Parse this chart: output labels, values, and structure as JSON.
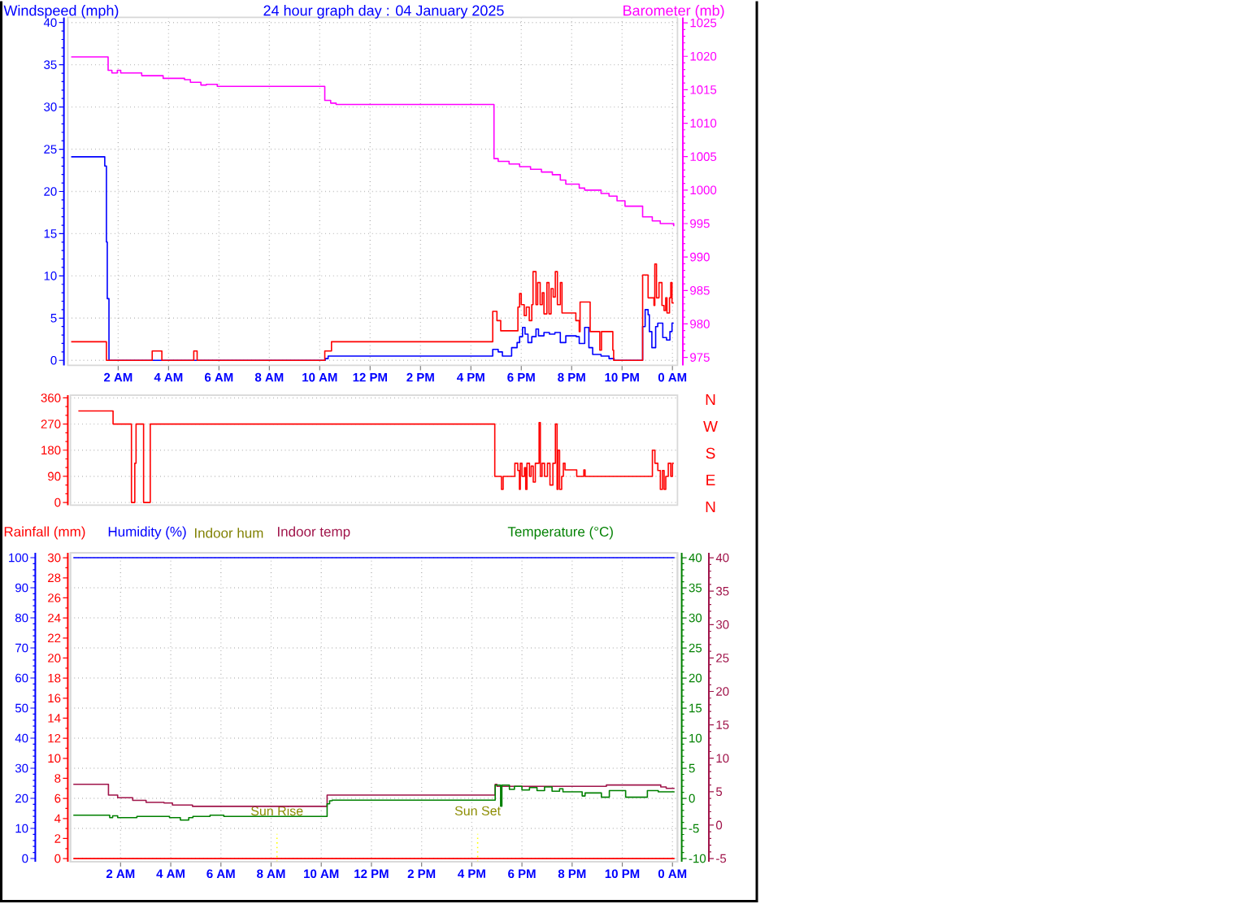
{
  "chart_data": [
    {
      "type": "step",
      "title": "24 hour graph day : 04 January 2025",
      "ylabel": "Windspeed (mph)",
      "y2label": "Barometer (mb)",
      "xlim": [
        "2025-01-04T00:00",
        "2025-01-05T00:12"
      ],
      "xticks": [
        {
          "value": "2025-01-04T02:00",
          "label": "2 AM"
        },
        {
          "value": "2025-01-04T04:00",
          "label": "4 AM"
        },
        {
          "value": "2025-01-04T06:00",
          "label": "6 AM"
        },
        {
          "value": "2025-01-04T08:00",
          "label": "8 AM"
        },
        {
          "value": "2025-01-04T10:00",
          "label": "10 AM"
        },
        {
          "value": "2025-01-04T12:00",
          "label": "12 PM"
        },
        {
          "value": "2025-01-04T14:00",
          "label": "2 PM"
        },
        {
          "value": "2025-01-04T16:00",
          "label": "4 PM"
        },
        {
          "value": "2025-01-04T18:00",
          "label": "6 PM"
        },
        {
          "value": "2025-01-04T20:00",
          "label": "8 PM"
        },
        {
          "value": "2025-01-04T22:00",
          "label": "10 PM"
        },
        {
          "value": "2025-01-05T00:00",
          "label": "0 AM"
        }
      ],
      "ylim": [
        -0.6,
        40.6
      ],
      "yticks": [
        0,
        5,
        10,
        15,
        20,
        25,
        30,
        35,
        40
      ],
      "y2lim": [
        973.8,
        1025.8
      ],
      "y2ticks": [
        975,
        980,
        985,
        990,
        995,
        1000,
        1005,
        1010,
        1015,
        1020,
        1025
      ],
      "grid": true,
      "series": [
        {
          "color": "#0000ff",
          "x": [
            "2025-01-04T00:08",
            "2025-01-04T01:28",
            "2025-01-04T01:32",
            "2025-01-04T01:34",
            "2025-01-04T01:38",
            "2025-01-04T10:13",
            "2025-01-04T10:20",
            "2025-01-04T16:52",
            "2025-01-04T17:05",
            "2025-01-04T17:15",
            "2025-01-04T17:37",
            "2025-01-04T17:50",
            "2025-01-04T17:56",
            "2025-01-04T18:03",
            "2025-01-04T18:09",
            "2025-01-04T18:16",
            "2025-01-04T18:25",
            "2025-01-04T18:35",
            "2025-01-04T18:41",
            "2025-01-04T18:54",
            "2025-01-04T19:07",
            "2025-01-04T19:20",
            "2025-01-04T19:33",
            "2025-01-04T19:46",
            "2025-01-04T20:11",
            "2025-01-04T20:18",
            "2025-01-04T20:31",
            "2025-01-04T20:41",
            "2025-01-04T20:50",
            "2025-01-04T21:10",
            "2025-01-04T21:29",
            "2025-01-04T21:41",
            "2025-01-04T22:49",
            "2025-01-04T22:55",
            "2025-01-04T23:02",
            "2025-01-04T23:05",
            "2025-01-04T23:11",
            "2025-01-04T23:20",
            "2025-01-04T23:25",
            "2025-01-04T23:37",
            "2025-01-04T23:46",
            "2025-01-04T23:54",
            "2025-01-04T23:59",
            "2025-01-05T00:03"
          ],
          "values": [
            24.1,
            23.0,
            14.0,
            7.3,
            0,
            0.2,
            0.5,
            1.3,
            1.0,
            0.5,
            1.5,
            2.1,
            2.8,
            3.9,
            3.1,
            2.1,
            2.8,
            3.7,
            2.9,
            3.3,
            3.1,
            3.3,
            2.1,
            2.9,
            2.8,
            2.0,
            3.9,
            1.5,
            0.7,
            0.5,
            0.2,
            0,
            4.0,
            6.0,
            5.4,
            3.4,
            1.5,
            4.0,
            4.4,
            2.7,
            2.4,
            3.4,
            4.4,
            4.4
          ]
        },
        {
          "color": "#ff0000",
          "x": [
            "2025-01-04T00:08",
            "2025-01-04T01:32",
            "2025-01-04T03:21",
            "2025-01-04T03:44",
            "2025-01-04T05:00",
            "2025-01-04T05:08",
            "2025-01-04T10:12",
            "2025-01-04T10:28",
            "2025-01-04T16:52",
            "2025-01-04T17:02",
            "2025-01-04T17:11",
            "2025-01-04T17:52",
            "2025-01-04T17:56",
            "2025-01-04T18:00",
            "2025-01-04T18:07",
            "2025-01-04T18:12",
            "2025-01-04T18:19",
            "2025-01-04T18:25",
            "2025-01-04T18:28",
            "2025-01-04T18:35",
            "2025-01-04T18:39",
            "2025-01-04T18:45",
            "2025-01-04T18:50",
            "2025-01-04T18:54",
            "2025-01-04T19:01",
            "2025-01-04T19:06",
            "2025-01-04T19:11",
            "2025-01-04T19:16",
            "2025-01-04T19:21",
            "2025-01-04T19:26",
            "2025-01-04T19:33",
            "2025-01-04T19:37",
            "2025-01-04T20:10",
            "2025-01-04T20:18",
            "2025-01-04T20:20",
            "2025-01-04T20:44",
            "2025-01-04T21:07",
            "2025-01-04T21:11",
            "2025-01-04T21:38",
            "2025-01-04T21:40",
            "2025-01-04T22:49",
            "2025-01-04T23:02",
            "2025-01-04T23:16",
            "2025-01-04T23:18",
            "2025-01-04T23:22",
            "2025-01-04T23:28",
            "2025-01-04T23:35",
            "2025-01-04T23:40",
            "2025-01-04T23:44",
            "2025-01-04T23:47",
            "2025-01-04T23:53",
            "2025-01-04T23:56",
            "2025-01-04T23:59",
            "2025-01-05T00:03"
          ],
          "values": [
            2.2,
            0,
            1.1,
            0,
            1.1,
            0,
            1.1,
            2.2,
            5.8,
            4.7,
            3.5,
            6.3,
            7.9,
            6.6,
            5.3,
            6.3,
            4.7,
            6.6,
            10.5,
            6.6,
            9.2,
            6.6,
            8.0,
            5.5,
            9.2,
            5.5,
            8.5,
            7.5,
            10.5,
            6.6,
            9.2,
            5.6,
            4.7,
            3.4,
            6.9,
            3.4,
            1.2,
            3.4,
            1.2,
            0,
            10.1,
            7.4,
            6.5,
            11.4,
            7.4,
            9.2,
            6.5,
            5.9,
            7.4,
            5.6,
            7.4,
            9.2,
            6.8,
            6.8
          ]
        },
        {
          "color": "#ff00ff",
          "axis": "y2",
          "x": [
            "2025-01-04T00:08",
            "2025-01-04T01:36",
            "2025-01-04T01:45",
            "2025-01-04T01:58",
            "2025-01-04T02:06",
            "2025-01-04T02:56",
            "2025-01-04T03:47",
            "2025-01-04T04:38",
            "2025-01-04T04:52",
            "2025-01-04T05:17",
            "2025-01-04T05:30",
            "2025-01-04T05:56",
            "2025-01-04T10:12",
            "2025-01-04T10:26",
            "2025-01-04T10:39",
            "2025-01-04T16:55",
            "2025-01-04T17:05",
            "2025-01-04T17:31",
            "2025-01-04T17:56",
            "2025-01-04T18:22",
            "2025-01-04T18:48",
            "2025-01-04T19:14",
            "2025-01-04T19:33",
            "2025-01-04T19:46",
            "2025-01-04T20:18",
            "2025-01-04T20:31",
            "2025-01-04T21:10",
            "2025-01-04T21:29",
            "2025-01-04T21:48",
            "2025-01-04T22:07",
            "2025-01-04T22:49",
            "2025-01-04T23:12",
            "2025-01-04T23:31",
            "2025-01-05T00:03"
          ],
          "values": [
            1019.9,
            1017.9,
            1017.5,
            1017.9,
            1017.5,
            1017.1,
            1016.7,
            1016.5,
            1016.1,
            1015.7,
            1015.8,
            1015.5,
            1013.4,
            1013.0,
            1012.8,
            1004.7,
            1004.3,
            1003.9,
            1003.5,
            1003.1,
            1002.7,
            1002.3,
            1001.5,
            1000.9,
            1000.3,
            1000.0,
            999.5,
            999.1,
            998.4,
            997.6,
            996.0,
            995.4,
            995.0,
            994.6
          ]
        }
      ]
    },
    {
      "type": "step",
      "xlim": [
        "2025-01-04T00:00",
        "2025-01-05T00:12"
      ],
      "tick_labels": "y",
      "ylim": [
        -9.5,
        369.5
      ],
      "yticks": [
        0,
        90,
        180,
        270,
        360
      ],
      "grid": "y",
      "annotations": [
        "N",
        "W",
        "S",
        "E",
        "N"
      ],
      "series": [
        {
          "color": "#ff0000",
          "x": [
            "2025-01-04T00:19",
            "2025-01-04T01:42",
            "2025-01-04T02:26",
            "2025-01-04T02:34",
            "2025-01-04T02:37",
            "2025-01-04T02:55",
            "2025-01-04T03:11",
            "2025-01-04T16:55",
            "2025-01-04T17:11",
            "2025-01-04T17:15",
            "2025-01-04T17:43",
            "2025-01-04T17:50",
            "2025-01-04T17:54",
            "2025-01-04T17:56",
            "2025-01-04T18:00",
            "2025-01-04T18:06",
            "2025-01-04T18:09",
            "2025-01-04T18:12",
            "2025-01-04T18:18",
            "2025-01-04T18:22",
            "2025-01-04T18:27",
            "2025-01-04T18:32",
            "2025-01-04T18:41",
            "2025-01-04T18:44",
            "2025-01-04T18:48",
            "2025-01-04T18:54",
            "2025-01-04T19:01",
            "2025-01-04T19:07",
            "2025-01-04T19:14",
            "2025-01-04T19:20",
            "2025-01-04T19:24",
            "2025-01-04T19:26",
            "2025-01-04T19:30",
            "2025-01-04T19:35",
            "2025-01-04T19:39",
            "2025-01-04T19:43",
            "2025-01-04T20:11",
            "2025-01-04T20:28",
            "2025-01-04T20:31",
            "2025-01-04T23:12",
            "2025-01-04T23:18",
            "2025-01-04T23:25",
            "2025-01-04T23:31",
            "2025-01-04T23:36",
            "2025-01-04T23:40",
            "2025-01-04T23:44",
            "2025-01-04T23:50",
            "2025-01-04T23:56",
            "2025-01-05T00:00",
            "2025-01-05T00:03"
          ],
          "values": [
            315,
            270,
            0,
            135,
            270,
            0,
            270,
            90,
            45,
            90,
            135,
            110,
            45,
            135,
            90,
            120,
            45,
            135,
            90,
            125,
            70,
            135,
            275,
            90,
            135,
            90,
            135,
            60,
            135,
            270,
            45,
            180,
            45,
            90,
            135,
            112,
            90,
            112,
            90,
            180,
            135,
            110,
            45,
            110,
            45,
            90,
            135,
            90,
            135,
            135
          ]
        }
      ]
    },
    {
      "type": "step",
      "annotations": [
        "Indoor hum"
      ],
      "legend": "top",
      "xlim": [
        "2025-01-04T00:00",
        "2025-01-05T00:12"
      ],
      "xticks": [
        {
          "value": "2025-01-04T02:00",
          "label": "2 AM"
        },
        {
          "value": "2025-01-04T04:00",
          "label": "4 AM"
        },
        {
          "value": "2025-01-04T06:00",
          "label": "6 AM"
        },
        {
          "value": "2025-01-04T08:00",
          "label": "8 AM"
        },
        {
          "value": "2025-01-04T10:00",
          "label": "10 AM"
        },
        {
          "value": "2025-01-04T12:00",
          "label": "12 PM"
        },
        {
          "value": "2025-01-04T14:00",
          "label": "2 PM"
        },
        {
          "value": "2025-01-04T16:00",
          "label": "4 PM"
        },
        {
          "value": "2025-01-04T18:00",
          "label": "6 PM"
        },
        {
          "value": "2025-01-04T20:00",
          "label": "8 PM"
        },
        {
          "value": "2025-01-04T22:00",
          "label": "10 PM"
        },
        {
          "value": "2025-01-05T00:00",
          "label": "0 AM"
        }
      ],
      "ylim": [
        -0.32,
        30.49
      ],
      "yticks": [
        0,
        2,
        4,
        6,
        8,
        10,
        12,
        14,
        16,
        18,
        20,
        22,
        24,
        26,
        28,
        30
      ],
      "y2lim": [
        -1.1,
        101.6
      ],
      "y2ticks": [
        0,
        10,
        20,
        30,
        40,
        50,
        60,
        70,
        80,
        90,
        100
      ],
      "grid": true,
      "ref_lines": [
        {
          "axis": "x",
          "value": "2025-01-04T08:14",
          "label": "Sun Rise",
          "color": "#ffff00",
          "line_style": "dotted"
        },
        {
          "axis": "x",
          "value": "2025-01-04T16:14",
          "label": "Sun Set",
          "color": "#ffff00",
          "line_style": "dotted"
        }
      ],
      "series": [
        {
          "name": "Humidity (%)",
          "color": "#0000ff",
          "axis": "y2",
          "x": [
            "2025-01-04T00:07",
            "2025-01-05T00:05"
          ],
          "values": [
            100,
            100
          ]
        },
        {
          "name": "Rainfall (mm)",
          "color": "#ff0000",
          "x": [
            "2025-01-04T00:07",
            "2025-01-05T00:05"
          ],
          "values": [
            0,
            0
          ]
        }
      ]
    },
    {
      "type": "step",
      "legend": "top",
      "xlim": [
        "2025-01-04T00:00",
        "2025-01-05T00:12"
      ],
      "tick_labels": "y",
      "ylim": [
        -10.54,
        40.81
      ],
      "yticks": [
        -10,
        -5,
        0,
        5,
        10,
        15,
        20,
        25,
        30,
        35,
        40
      ],
      "y2lim": [
        -5.49,
        40.73
      ],
      "y2ticks": [
        -5,
        0,
        5,
        10,
        15,
        20,
        25,
        30,
        35,
        40
      ],
      "series": [
        {
          "name": "Indoor temp",
          "color": "#a0144a",
          "axis": "y2",
          "x": [
            "2025-01-04T00:07",
            "2025-01-04T01:31",
            "2025-01-04T01:53",
            "2025-01-04T02:29",
            "2025-01-04T03:01",
            "2025-01-04T03:44",
            "2025-01-04T04:04",
            "2025-01-04T04:52",
            "2025-01-04T10:14",
            "2025-01-04T16:56",
            "2025-01-04T17:00",
            "2025-01-04T21:22",
            "2025-01-04T23:32",
            "2025-01-04T23:45",
            "2025-01-05T00:05"
          ],
          "values": [
            6.1,
            4.5,
            4.1,
            3.7,
            3.4,
            3.3,
            3.0,
            2.8,
            4.5,
            6.1,
            5.8,
            6.0,
            5.7,
            5.5,
            5.5
          ]
        },
        {
          "name": "Temperature (°C)",
          "color": "#008000",
          "x": [
            "2025-01-04T00:07",
            "2025-01-04T01:34",
            "2025-01-04T01:41",
            "2025-01-04T01:53",
            "2025-01-04T02:39",
            "2025-01-04T03:57",
            "2025-01-04T04:23",
            "2025-01-04T04:43",
            "2025-01-04T04:53",
            "2025-01-04T05:34",
            "2025-01-04T06:07",
            "2025-01-04T10:14",
            "2025-01-04T10:20",
            "2025-01-04T10:26",
            "2025-01-04T16:56",
            "2025-01-04T17:09",
            "2025-01-04T17:12",
            "2025-01-04T17:30",
            "2025-01-04T17:42",
            "2025-01-04T18:00",
            "2025-01-04T18:18",
            "2025-01-04T18:36",
            "2025-01-04T18:54",
            "2025-01-04T19:12",
            "2025-01-04T19:30",
            "2025-01-04T19:38",
            "2025-01-04T20:24",
            "2025-01-04T20:31",
            "2025-01-04T21:10",
            "2025-01-04T21:29",
            "2025-01-04T22:08",
            "2025-01-04T23:00",
            "2025-01-04T23:26",
            "2025-01-05T00:05"
          ],
          "values": [
            -2.8,
            -3.2,
            -2.9,
            -3.2,
            -3.0,
            -3.2,
            -3.6,
            -3.2,
            -3.0,
            -2.8,
            -3.0,
            -0.9,
            -0.4,
            -0.3,
            2.2,
            -1.3,
            2.2,
            1.5,
            2.0,
            1.4,
            1.8,
            1.3,
            1.9,
            1.2,
            1.6,
            1.1,
            0.4,
            0.9,
            0.2,
            1.3,
            0.2,
            1.3,
            1.1,
            1.1
          ]
        }
      ]
    }
  ]
}
